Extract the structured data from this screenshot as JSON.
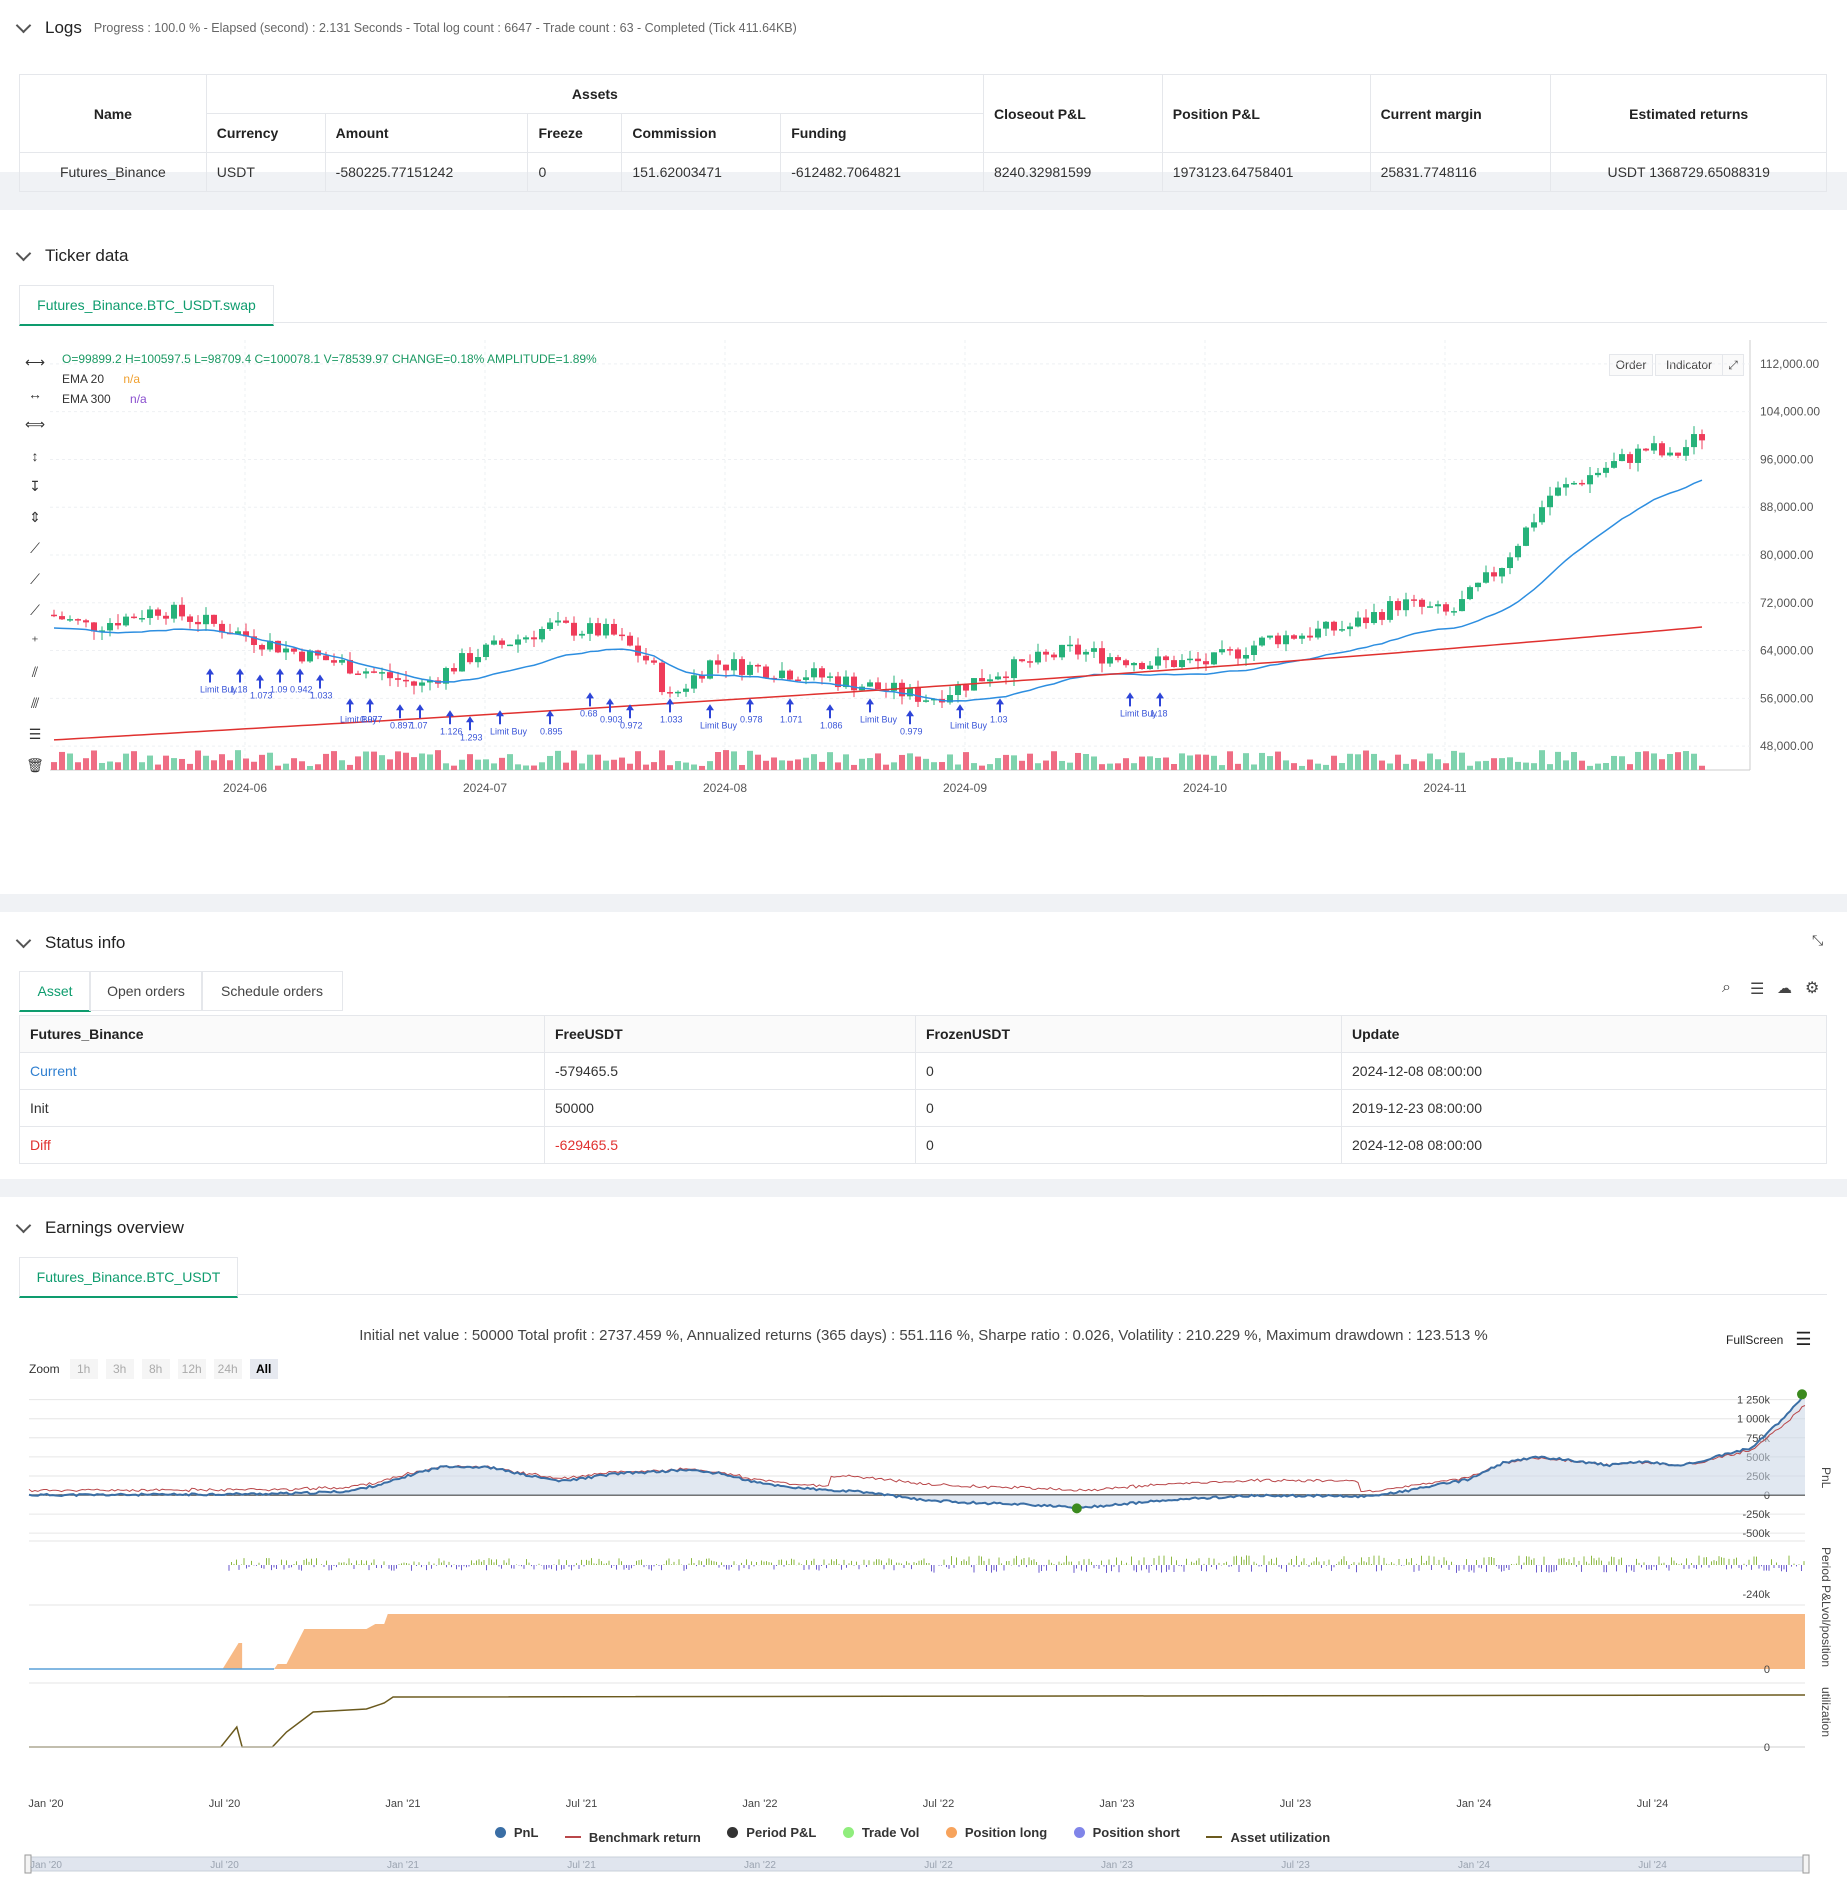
{
  "logs": {
    "title": "Logs",
    "info": "Progress : 100.0 % - Elapsed (second) : 2.131  Seconds - Total log count : 6647 - Trade count : 63 - Completed (Tick 411.64KB)"
  },
  "assets_table": {
    "h_name": "Name",
    "h_assets": "Assets",
    "h_currency": "Currency",
    "h_amount": "Amount",
    "h_freeze": "Freeze",
    "h_commission": "Commission",
    "h_funding": "Funding",
    "h_closeout": "Closeout P&L",
    "h_position": "Position P&L",
    "h_margin": "Current margin",
    "h_returns": "Estimated returns",
    "row": {
      "name": "Futures_Binance",
      "currency": "USDT",
      "amount": "-580225.77151242",
      "freeze": "0",
      "commission": "151.62003471",
      "funding": "-612482.7064821",
      "closeout": "8240.32981599",
      "position": "1973123.64758401",
      "margin": "25831.7748116",
      "returns": "USDT 1368729.65088319"
    }
  },
  "ticker": {
    "title": "Ticker data",
    "tab": "Futures_Binance.BTC_USDT.swap",
    "ohlc": "O=99899.2 H=100597.5 L=98709.4 C=100078.1 V=78539.97 CHANGE=0.18% AMPLITUDE=1.89%",
    "ema20_label": "EMA 20",
    "ema20_value": "n/a",
    "ema300_label": "EMA 300",
    "ema300_value": "n/a",
    "order_btn": "Order",
    "indicator_btn": "Indicator",
    "y_ticks": [
      "112,000.00",
      "104,000.00",
      "96,000.00",
      "88,000.00",
      "80,000.00",
      "72,000.00",
      "64,000.00",
      "56,000.00",
      "48,000.00"
    ],
    "x_ticks": [
      "2024-06",
      "2024-07",
      "2024-08",
      "2024-09",
      "2024-10",
      "2024-11"
    ],
    "marker_labels": [
      "Limit Buy",
      "1.18",
      "1.073",
      "1.09",
      "0.942",
      "1.033",
      "Limit Buy",
      "0.977",
      "0.897",
      "1.07",
      "1.126",
      "1.293",
      "Limit Buy",
      "0.895",
      "0.68",
      "0.903",
      "0.972",
      "1.033",
      "Limit Buy",
      "0.978",
      "1.071",
      "1.086",
      "Limit Buy",
      "0.979",
      "Limit Buy",
      "1.03"
    ]
  },
  "status": {
    "title": "Status info",
    "tabs": [
      "Asset",
      "Open orders",
      "Schedule orders"
    ],
    "headers": [
      "Futures_Binance",
      "FreeUSDT",
      "FrozenUSDT",
      "Update"
    ],
    "rows": [
      [
        "Current",
        "-579465.5",
        "0",
        "2024-12-08 08:00:00"
      ],
      [
        "Init",
        "50000",
        "0",
        "2019-12-23 08:00:00"
      ],
      [
        "Diff",
        "-629465.5",
        "0",
        "2024-12-08 08:00:00"
      ]
    ]
  },
  "earnings": {
    "title": "Earnings overview",
    "tab": "Futures_Binance.BTC_USDT",
    "summary": "Initial net value : 50000 Total profit : 2737.459 %, Annualized returns (365 days) : 551.116 %, Sharpe ratio : 0.026, Volatility : 210.229 %, Maximum drawdown : 123.513 %",
    "fullscreen": "FullScreen",
    "zoom_label": "Zoom",
    "zoom_options": [
      "1h",
      "3h",
      "8h",
      "12h",
      "24h",
      "All"
    ],
    "pnl_ticks": [
      "1 250k",
      "1 000k",
      "750k",
      "500k",
      "250k",
      "0",
      "-250k",
      "-500k"
    ],
    "period_tick": "-240k",
    "vol_tick": "0",
    "util_tick": "0",
    "axis_pnl": "PnL",
    "axis_period": "Period P&L",
    "axis_vol": "vol/position",
    "axis_util": "utilization",
    "x_ticks": [
      "Jan '20",
      "Jul '20",
      "Jan '21",
      "Jul '21",
      "Jan '22",
      "Jul '22",
      "Jan '23",
      "Jul '23",
      "Jan '24",
      "Jul '24"
    ],
    "legend": [
      "PnL",
      "Benchmark return",
      "Period P&L",
      "Trade Vol",
      "Position long",
      "Position short",
      "Asset utilization"
    ],
    "colors": {
      "pnl": "#3a6ea5",
      "benchmark": "#b9474a",
      "period": "#333333",
      "trade_vol": "#90ed7d",
      "long": "#f7a35c",
      "short": "#8085e9",
      "util": "#6b5a1e"
    }
  }
}
